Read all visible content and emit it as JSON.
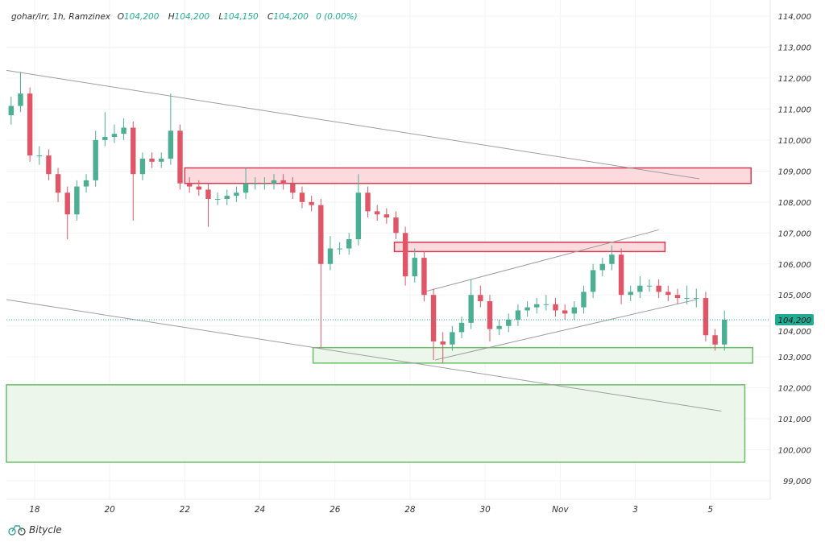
{
  "header": {
    "symbol": "gohar/irr, 1h, Ramzinex",
    "o_label": "O",
    "o": "104,200",
    "h_label": "H",
    "h": "104,200",
    "l_label": "L",
    "l": "104,150",
    "c_label": "C",
    "c": "104,200",
    "change": "0 (0.00%)"
  },
  "brand": {
    "name": "Bitycle",
    "icon": "bicycle-icon"
  },
  "colors": {
    "up": "#4caf93",
    "down": "#e05667",
    "price_label": "#22ab94",
    "zone_red_fill": "#fbd3d8",
    "zone_red_stroke": "#d63a50",
    "zone_green_fill": "#e9f5e8",
    "zone_green_stroke": "#6cbd6a",
    "trendline": "#9e9e9e"
  },
  "chart_data": {
    "type": "candlestick",
    "title": "",
    "yticks": [
      "99,000",
      "100,000",
      "101,000",
      "102,000",
      "103,000",
      "104,000",
      "105,000",
      "106,000",
      "107,000",
      "108,000",
      "109,000",
      "110,000",
      "111,000",
      "112,000",
      "113,000",
      "114,000"
    ],
    "ylim": [
      98500,
      114400
    ],
    "xlim": [
      "Oct 17 06:00",
      "Nov 7 08:00"
    ],
    "xticks": [
      {
        "t": "Oct 18 00:00",
        "label": "18"
      },
      {
        "t": "Oct 20 00:00",
        "label": "20"
      },
      {
        "t": "Oct 22 00:00",
        "label": "22"
      },
      {
        "t": "Oct 24 00:00",
        "label": "24"
      },
      {
        "t": "Oct 26 00:00",
        "label": "26"
      },
      {
        "t": "Oct 28 00:00",
        "label": "28"
      },
      {
        "t": "Oct 30 00:00",
        "label": "30"
      },
      {
        "t": "Nov 1 00:00",
        "label": "Nov"
      },
      {
        "t": "Nov 3 00:00",
        "label": "3"
      },
      {
        "t": "Nov 5 00:00",
        "label": "5"
      }
    ],
    "last_price": 104200,
    "last_price_label": "104,200",
    "candle_start": "Oct 17 06:00",
    "candle_step_hours": 6,
    "ohlc": [
      [
        110800,
        111400,
        110500,
        111100
      ],
      [
        111100,
        112200,
        110900,
        111500
      ],
      [
        111500,
        111700,
        109300,
        109500
      ],
      [
        109500,
        109800,
        109200,
        109500
      ],
      [
        109500,
        109700,
        108700,
        108900
      ],
      [
        108900,
        109100,
        108000,
        108300
      ],
      [
        108300,
        108500,
        106800,
        107600
      ],
      [
        107600,
        108700,
        107400,
        108500
      ],
      [
        108500,
        108900,
        108300,
        108700
      ],
      [
        108700,
        110300,
        108500,
        110000
      ],
      [
        110000,
        110900,
        109800,
        110100
      ],
      [
        110100,
        110500,
        109900,
        110200
      ],
      [
        110200,
        110700,
        110000,
        110400
      ],
      [
        110400,
        110600,
        107400,
        108900
      ],
      [
        108900,
        109600,
        108700,
        109400
      ],
      [
        109400,
        109600,
        109100,
        109300
      ],
      [
        109300,
        109600,
        109100,
        109400
      ],
      [
        109400,
        111500,
        109200,
        110300
      ],
      [
        110300,
        110500,
        108400,
        108600
      ],
      [
        108600,
        108800,
        108300,
        108500
      ],
      [
        108500,
        108700,
        108200,
        108400
      ],
      [
        108400,
        108600,
        107200,
        108100
      ],
      [
        108100,
        108300,
        107900,
        108100
      ],
      [
        108100,
        108400,
        107900,
        108200
      ],
      [
        108200,
        108500,
        108000,
        108300
      ],
      [
        108300,
        109100,
        108100,
        108600
      ],
      [
        108600,
        108800,
        108400,
        108600
      ],
      [
        108600,
        108800,
        108400,
        108600
      ],
      [
        108600,
        108900,
        108400,
        108700
      ],
      [
        108700,
        108900,
        108400,
        108600
      ],
      [
        108600,
        108800,
        108100,
        108300
      ],
      [
        108300,
        108500,
        107800,
        108000
      ],
      [
        108000,
        108200,
        107700,
        107900
      ],
      [
        107900,
        108100,
        103300,
        106000
      ],
      [
        106000,
        106900,
        105800,
        106500
      ],
      [
        106500,
        106700,
        106300,
        106500
      ],
      [
        106500,
        107000,
        106300,
        106800
      ],
      [
        106800,
        108900,
        106600,
        108300
      ],
      [
        108300,
        108500,
        107500,
        107700
      ],
      [
        107700,
        107900,
        107400,
        107600
      ],
      [
        107600,
        107800,
        107300,
        107500
      ],
      [
        107500,
        107700,
        106800,
        107000
      ],
      [
        107000,
        107200,
        105300,
        105600
      ],
      [
        105600,
        106500,
        105400,
        106200
      ],
      [
        106200,
        106400,
        104800,
        105000
      ],
      [
        105000,
        105200,
        102900,
        103500
      ],
      [
        103500,
        103800,
        102800,
        103400
      ],
      [
        103400,
        104000,
        103200,
        103800
      ],
      [
        103800,
        104300,
        103600,
        104100
      ],
      [
        104100,
        105500,
        103900,
        105000
      ],
      [
        105000,
        105300,
        104600,
        104800
      ],
      [
        104800,
        105000,
        103500,
        103900
      ],
      [
        103900,
        104200,
        103700,
        104000
      ],
      [
        104000,
        104400,
        103800,
        104200
      ],
      [
        104200,
        104700,
        104000,
        104500
      ],
      [
        104500,
        104800,
        104300,
        104600
      ],
      [
        104600,
        104900,
        104400,
        104700
      ],
      [
        104700,
        105000,
        104500,
        104700
      ],
      [
        104700,
        104900,
        104300,
        104500
      ],
      [
        104500,
        104700,
        104200,
        104400
      ],
      [
        104400,
        104800,
        104200,
        104600
      ],
      [
        104600,
        105300,
        104400,
        105100
      ],
      [
        105100,
        106000,
        104900,
        105800
      ],
      [
        105800,
        106200,
        105600,
        106000
      ],
      [
        106000,
        106600,
        105800,
        106300
      ],
      [
        106300,
        106500,
        104700,
        105000
      ],
      [
        105000,
        105300,
        104800,
        105100
      ],
      [
        105100,
        105600,
        104900,
        105300
      ],
      [
        105300,
        105500,
        105100,
        105300
      ],
      [
        105300,
        105500,
        104900,
        105100
      ],
      [
        105100,
        105300,
        104800,
        105000
      ],
      [
        105000,
        105200,
        104700,
        104900
      ],
      [
        104900,
        105300,
        104700,
        104900
      ],
      [
        104900,
        105200,
        104600,
        104900
      ],
      [
        104900,
        105100,
        103500,
        103700
      ],
      [
        103700,
        103900,
        103200,
        103400
      ],
      [
        103400,
        104500,
        103200,
        104200
      ]
    ],
    "zones": [
      {
        "kind": "resistance",
        "t1": "Oct 22 00:00",
        "t2": "Nov 6 02:00",
        "top": 109100,
        "bottom": 108600
      },
      {
        "kind": "resistance",
        "t1": "Oct 27 14:00",
        "t2": "Nov 3 19:00",
        "top": 106700,
        "bottom": 106400
      },
      {
        "kind": "support",
        "t1": "Oct 25 10:00",
        "t2": "Nov 6 03:00",
        "top": 103300,
        "bottom": 102800
      },
      {
        "kind": "support",
        "t1": "Oct 17 06:00",
        "t2": "Nov 5 22:00",
        "top": 102100,
        "bottom": 99600
      }
    ],
    "trendlines": [
      {
        "t1": "Oct 17 06:00",
        "p1": 112250,
        "t2": "Nov 4 17:00",
        "p2": 108750
      },
      {
        "t1": "Oct 17 06:00",
        "p1": 104850,
        "t2": "Nov 5 07:00",
        "p2": 101250
      },
      {
        "t1": "Oct 28 09:00",
        "p1": 105100,
        "t2": "Nov 3 15:00",
        "p2": 107100
      },
      {
        "t1": "Oct 28 16:00",
        "p1": 102900,
        "t2": "Nov 4 15:00",
        "p2": 104850
      }
    ]
  }
}
